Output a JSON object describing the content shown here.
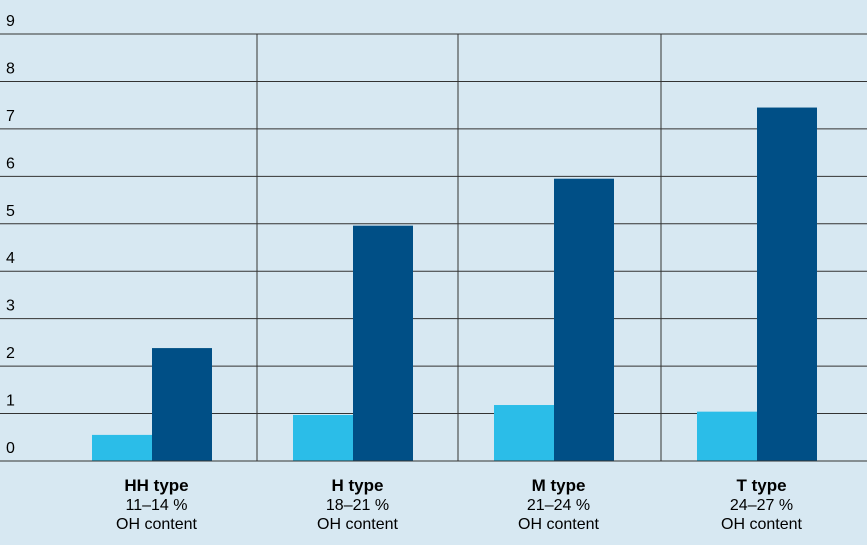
{
  "chart_data": {
    "type": "bar",
    "y_ticks": [
      "0",
      "1",
      "2",
      "3",
      "4",
      "5",
      "6",
      "7",
      "8",
      "9"
    ],
    "ylim": [
      0,
      9
    ],
    "grid": true,
    "categories": [
      {
        "name": "HH type",
        "range": "11–14 %",
        "unit": "OH content"
      },
      {
        "name": "H type",
        "range": "18–21 %",
        "unit": "OH content"
      },
      {
        "name": "M type",
        "range": "21–24 %",
        "unit": "OH content"
      },
      {
        "name": "T type",
        "range": "24–27 %",
        "unit": "OH content"
      }
    ],
    "series": [
      {
        "values": [
          0.55,
          0.97,
          1.18,
          1.04
        ],
        "color": "#2bbde8"
      },
      {
        "values": [
          2.38,
          4.96,
          5.95,
          7.45
        ],
        "color": "#004f86"
      }
    ]
  }
}
